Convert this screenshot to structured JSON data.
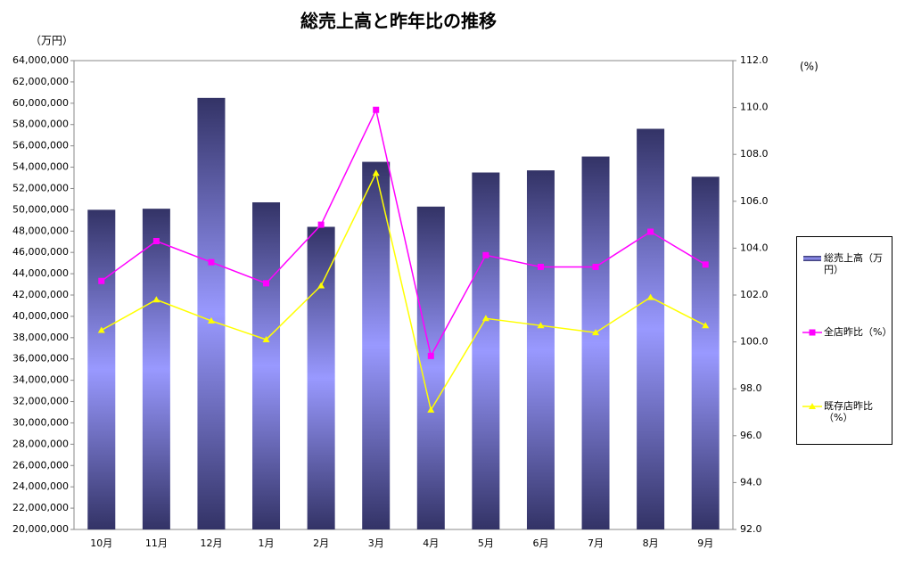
{
  "chart_data": {
    "type": "bar-line",
    "title": "総売上高と昨年比の推移",
    "y_unit": "（万円）",
    "y2_unit": "(%)",
    "categories": [
      "10月",
      "11月",
      "12月",
      "1月",
      "2月",
      "3月",
      "4月",
      "5月",
      "6月",
      "7月",
      "8月",
      "9月"
    ],
    "series": [
      {
        "name": "総売上高（万円）",
        "type": "bar",
        "color": "#9999ff",
        "values": [
          50000000,
          50100000,
          60500000,
          50700000,
          48400000,
          54500000,
          50300000,
          53500000,
          53700000,
          55000000,
          57600000,
          53100000
        ]
      },
      {
        "name": "全店昨比（%）",
        "type": "line",
        "marker": "square",
        "axis": "y2",
        "color": "#ff00ff",
        "values": [
          102.6,
          104.3,
          103.4,
          102.5,
          105.0,
          109.9,
          99.4,
          103.7,
          103.2,
          103.2,
          104.7,
          103.3
        ]
      },
      {
        "name": "既存店昨比（%）",
        "type": "line",
        "marker": "triangle",
        "axis": "y2",
        "color": "#ffff00",
        "values": [
          100.5,
          101.8,
          100.9,
          100.1,
          102.4,
          107.2,
          97.1,
          101.0,
          100.7,
          100.4,
          101.9,
          100.7
        ]
      }
    ],
    "ylim": [
      20000000,
      64000000
    ],
    "yticks": [
      {
        "value": 20000000,
        "label": "20,000,000"
      },
      {
        "value": 22000000,
        "label": "22,000,000"
      },
      {
        "value": 24000000,
        "label": "24,000,000"
      },
      {
        "value": 26000000,
        "label": "26,000,000"
      },
      {
        "value": 28000000,
        "label": "28,000,000"
      },
      {
        "value": 30000000,
        "label": "30,000,000"
      },
      {
        "value": 32000000,
        "label": "32,000,000"
      },
      {
        "value": 34000000,
        "label": "34,000,000"
      },
      {
        "value": 36000000,
        "label": "36,000,000"
      },
      {
        "value": 38000000,
        "label": "38,000,000"
      },
      {
        "value": 40000000,
        "label": "40,000,000"
      },
      {
        "value": 42000000,
        "label": "42,000,000"
      },
      {
        "value": 44000000,
        "label": "44,000,000"
      },
      {
        "value": 46000000,
        "label": "46,000,000"
      },
      {
        "value": 48000000,
        "label": "48,000,000"
      },
      {
        "value": 50000000,
        "label": "50,000,000"
      },
      {
        "value": 52000000,
        "label": "52,000,000"
      },
      {
        "value": 54000000,
        "label": "54,000,000"
      },
      {
        "value": 56000000,
        "label": "56,000,000"
      },
      {
        "value": 58000000,
        "label": "58,000,000"
      },
      {
        "value": 60000000,
        "label": "60,000,000"
      },
      {
        "value": 62000000,
        "label": "62,000,000"
      },
      {
        "value": 64000000,
        "label": "64,000,000"
      }
    ],
    "y2lim": [
      92,
      112
    ],
    "y2ticks": [
      {
        "value": 92,
        "label": "92.0"
      },
      {
        "value": 94,
        "label": "94.0"
      },
      {
        "value": 96,
        "label": "96.0"
      },
      {
        "value": 98,
        "label": "98.0"
      },
      {
        "value": 100,
        "label": "100.0"
      },
      {
        "value": 102,
        "label": "102.0"
      },
      {
        "value": 104,
        "label": "104.0"
      },
      {
        "value": 106,
        "label": "106.0"
      },
      {
        "value": 108,
        "label": "108.0"
      },
      {
        "value": 110,
        "label": "110.0"
      },
      {
        "value": 112,
        "label": "112.0"
      }
    ],
    "grid": false,
    "legend": "right"
  }
}
